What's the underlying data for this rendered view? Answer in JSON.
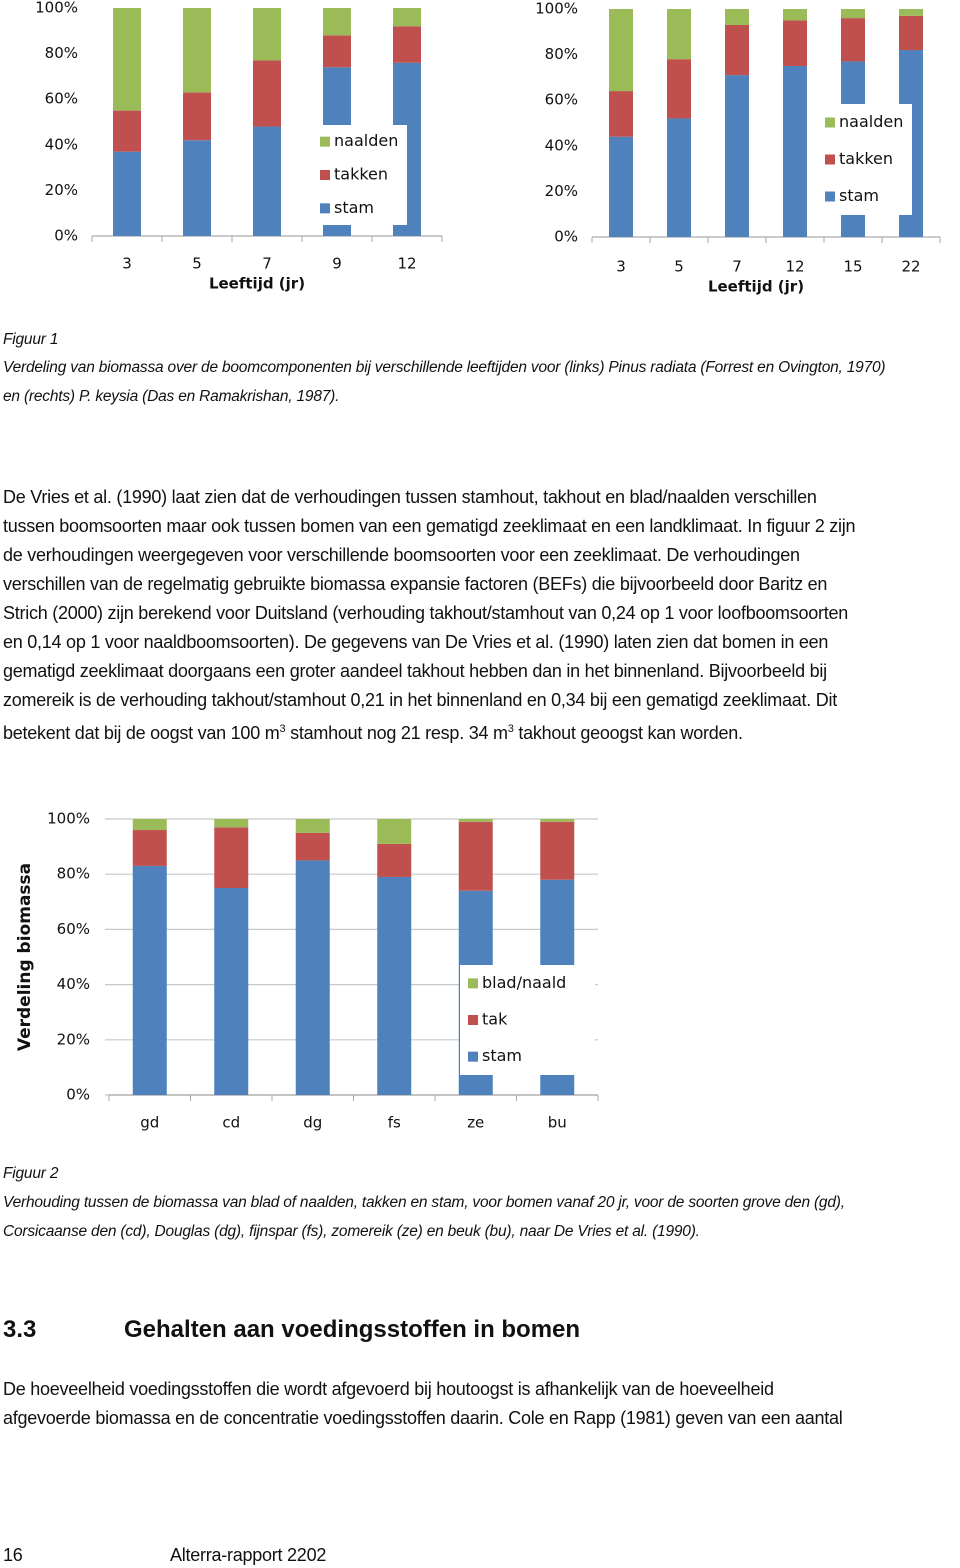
{
  "chart_data": [
    {
      "type": "bar",
      "stacked": true,
      "x_label": "Leeftijd (jr)",
      "categories": [
        "3",
        "5",
        "7",
        "9",
        "12"
      ],
      "series": [
        {
          "name": "stam",
          "color": "#4f81bd",
          "values": [
            37,
            42,
            48,
            74,
            76
          ]
        },
        {
          "name": "takken",
          "color": "#c0504d",
          "values": [
            18,
            21,
            29,
            14,
            16
          ]
        },
        {
          "name": "naalden",
          "color": "#9bbb59",
          "values": [
            45,
            37,
            23,
            12,
            8
          ]
        }
      ],
      "ylim": [
        0,
        100
      ],
      "yticks": [
        {
          "value": 0,
          "label": "0%"
        },
        {
          "value": 20,
          "label": "20%"
        },
        {
          "value": 40,
          "label": "40%"
        },
        {
          "value": 60,
          "label": "60%"
        },
        {
          "value": 80,
          "label": "80%"
        },
        {
          "value": 100,
          "label": "100%"
        }
      ],
      "grid": false,
      "legend": "lower right"
    },
    {
      "type": "bar",
      "stacked": true,
      "x_label": "Leeftijd (jr)",
      "categories": [
        "3",
        "5",
        "7",
        "12",
        "15",
        "22"
      ],
      "series": [
        {
          "name": "stam",
          "color": "#4f81bd",
          "values": [
            44,
            52,
            71,
            75,
            77,
            82
          ]
        },
        {
          "name": "takken",
          "color": "#c0504d",
          "values": [
            20,
            26,
            22,
            20,
            19,
            15
          ]
        },
        {
          "name": "naalden",
          "color": "#9bbb59",
          "values": [
            36,
            22,
            7,
            5,
            4,
            3
          ]
        }
      ],
      "ylim": [
        0,
        100
      ],
      "yticks": [
        {
          "value": 0,
          "label": "0%"
        },
        {
          "value": 20,
          "label": "20%"
        },
        {
          "value": 40,
          "label": "40%"
        },
        {
          "value": 60,
          "label": "60%"
        },
        {
          "value": 80,
          "label": "80%"
        },
        {
          "value": 100,
          "label": "100%"
        }
      ],
      "grid": false,
      "legend": "lower right"
    },
    {
      "type": "bar",
      "stacked": true,
      "y_label": "Verdeling biomassa",
      "categories": [
        "gd",
        "cd",
        "dg",
        "fs",
        "ze",
        "bu"
      ],
      "series": [
        {
          "name": "stam",
          "color": "#4f81bd",
          "values": [
            83,
            75,
            85,
            79,
            74,
            78
          ]
        },
        {
          "name": "tak",
          "color": "#c0504d",
          "values": [
            13,
            22,
            10,
            12,
            25,
            21
          ]
        },
        {
          "name": "blad/naald",
          "color": "#9bbb59",
          "values": [
            4,
            3,
            5,
            9,
            1,
            1
          ]
        }
      ],
      "ylim": [
        0,
        100
      ],
      "yticks": [
        {
          "value": 0,
          "label": "0%"
        },
        {
          "value": 20,
          "label": "20%"
        },
        {
          "value": 40,
          "label": "40%"
        },
        {
          "value": 60,
          "label": "60%"
        },
        {
          "value": 80,
          "label": "80%"
        },
        {
          "value": 100,
          "label": "100%"
        }
      ],
      "grid": true,
      "legend": "lower right"
    }
  ],
  "figure1": {
    "label": "Figuur 1",
    "caption": [
      "Verdeling van biomassa over de boomcomponenten bij verschillende leeftijden voor (links) Pinus radiata (Forrest en Ovington, 1970)",
      "en (rechts) P. keysia (Das en Ramakrishan, 1987)."
    ]
  },
  "paragraph1": {
    "lines": [
      "De Vries et al. (1990) laat zien dat de verhoudingen tussen stamhout, takhout en blad/naalden verschillen",
      "tussen boomsoorten maar ook tussen bomen van een gematigd zeeklimaat en een landklimaat. In figuur 2 zijn",
      "de verhoudingen weergegeven voor verschillende boomsoorten voor een zeeklimaat. De verhoudingen",
      "verschillen van de regelmatig gebruikte biomassa expansie factoren (BEFs) die bijvoorbeeld door Baritz en",
      "Strich (2000) zijn berekend voor Duitsland (verhouding takhout/stamhout van 0,24 op 1 voor loofboomsoorten",
      "en 0,14 op 1 voor naaldboomsoorten). De gegevens van De Vries et al. (1990) laten zien dat bomen in een",
      "gematigd zeeklimaat doorgaans een groter aandeel takhout hebben dan in het binnenland. Bijvoorbeeld bij",
      "zomereik is de verhouding takhout/stamhout 0,21 in het binnenland en 0,34 bij een gematigd zeeklimaat. Dit"
    ],
    "last_line": [
      "betekent dat bij de oogst van 100 m",
      "3",
      " stamhout nog 21 resp. 34 m",
      "3",
      " takhout geoogst kan worden."
    ]
  },
  "figure2": {
    "label": "Figuur 2",
    "caption": [
      "Verhouding tussen de biomassa van blad of naalden, takken en stam, voor bomen vanaf 20 jr, voor de soorten grove den (gd),",
      "Corsicaanse den (cd), Douglas (dg), fijnspar (fs), zomereik (ze) en beuk (bu), naar De Vries et al. (1990)."
    ]
  },
  "section": {
    "number": "3.3",
    "title": "Gehalten aan voedingsstoffen in bomen"
  },
  "paragraph2": {
    "lines": [
      "De hoeveelheid voedingsstoffen die wordt afgevoerd bij houtoogst is afhankelijk van de hoeveelheid",
      "afgevoerde biomassa en de concentratie voedingsstoffen daarin. Cole en Rapp (1981) geven van een aantal"
    ]
  },
  "footer": {
    "page": "16",
    "report": "Alterra-rapport 2202"
  }
}
